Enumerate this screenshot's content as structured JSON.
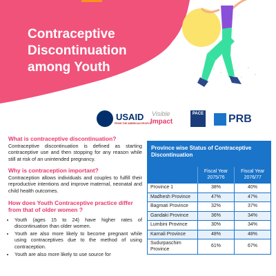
{
  "header": {
    "title": "Contraceptive Discontinuation among Youth"
  },
  "logos": {
    "usaid": "USAID",
    "usaid_tagline": "FROM THE AMERICAN PEOPLE",
    "visible": "Visible",
    "impact": "Impact",
    "pace": "PACE",
    "prb": "PRB"
  },
  "sections": [
    {
      "heading": "What is contraceptive discontinuation?",
      "text": "Contraceptive discontinuation is defined as starting contraceptive use and then stopping for any reason while still at risk of an unintended pregnancy."
    },
    {
      "heading": "Why is contraception important?",
      "text": "Contraception allows individuals and couples to fulfill their reproductive intentions and improve maternal, neonatal and child health outcomes."
    },
    {
      "heading": "How does Youth Contraceptive practice differ from that of older women ?",
      "bullets": [
        "Youth (ages 15 to 24) have higher rates of discontinuation than older women.",
        "Youth are also more likely to become pregnant while using contraceptives due to the method of using contraception.",
        "Youth are also more likely to use source for"
      ]
    }
  ],
  "table": {
    "title": "Province wise Status of Contraceptive Discontinuation",
    "columns": [
      "Fiscal Year 2075/76",
      "Fiscal Year 2076/77"
    ],
    "rows": [
      [
        "Province 1",
        "38%",
        "40%"
      ],
      [
        "Madhesh Province",
        "47%",
        "47%"
      ],
      [
        "Bagmati Province",
        "32%",
        "37%"
      ],
      [
        "Gandaki Province",
        "36%",
        "34%"
      ],
      [
        "Lumbini Province",
        "30%",
        "34%"
      ],
      [
        "Karnali Province",
        "48%",
        "48%"
      ],
      [
        "Sudurpaschim Province",
        "61%",
        "67%"
      ]
    ]
  }
}
